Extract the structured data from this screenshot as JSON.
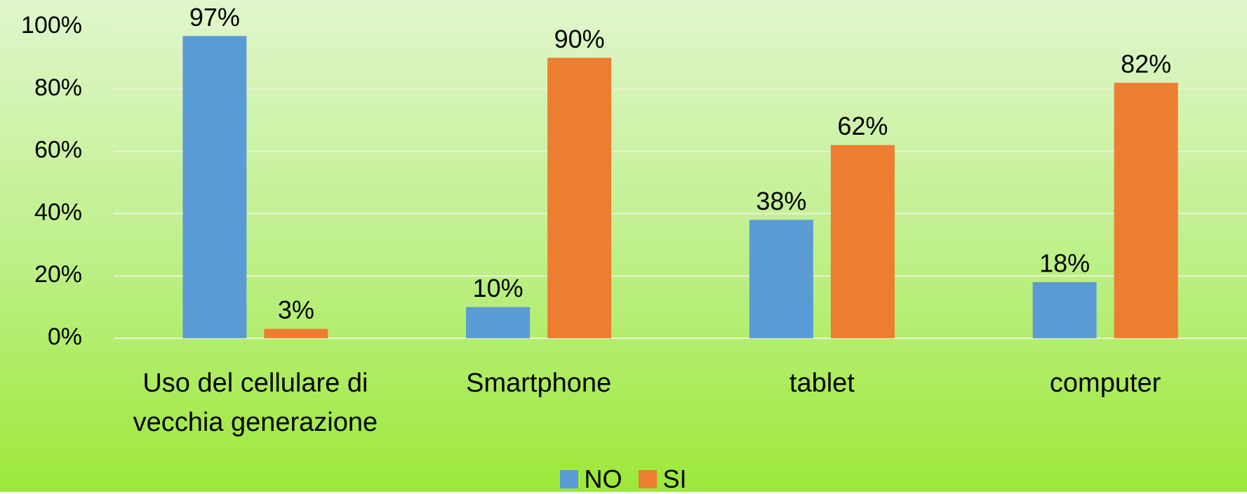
{
  "chart_data": {
    "type": "bar",
    "categories": [
      "Uso del cellulare di vecchia generazione",
      "Smartphone",
      "tablet",
      "computer"
    ],
    "series": [
      {
        "name": "NO",
        "color": "#5b9bd5",
        "values": [
          97,
          10,
          38,
          18
        ],
        "value_labels": [
          "97%",
          "10%",
          "38%",
          "18%"
        ]
      },
      {
        "name": "SI",
        "color": "#ed7d31",
        "values": [
          3,
          90,
          62,
          82
        ],
        "value_labels": [
          "3%",
          "90%",
          "62%",
          "82%"
        ]
      }
    ],
    "ylim": [
      0,
      100
    ],
    "yticks": [
      {
        "value": 0,
        "label": "0%"
      },
      {
        "value": 20,
        "label": "20%"
      },
      {
        "value": 40,
        "label": "40%"
      },
      {
        "value": 60,
        "label": "60%"
      },
      {
        "value": 80,
        "label": "80%"
      },
      {
        "value": 100,
        "label": "100%"
      }
    ],
    "grid": true,
    "legend": "bottom"
  }
}
